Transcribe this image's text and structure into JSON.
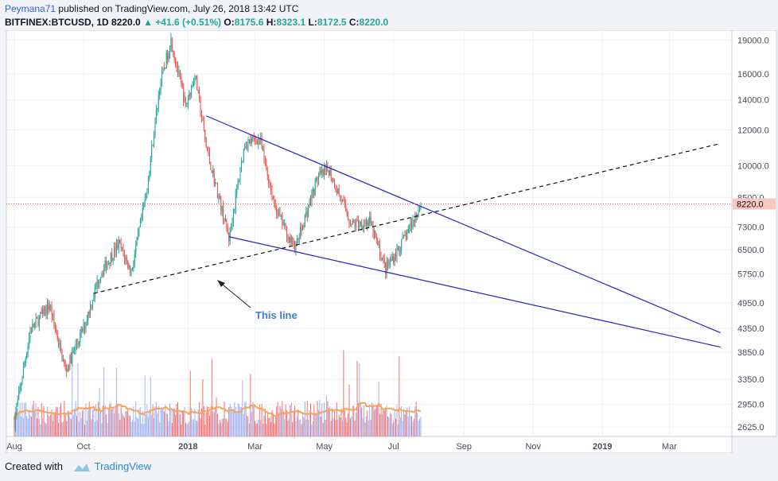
{
  "header": {
    "author": "Peymana71",
    "published_text": "published on TradingView.com, July 26, 2018 13:42 UTC",
    "symbol": "BITFINEX:BTCUSD, 1D",
    "last": "8220.0",
    "change": "+41.6 (+0.51%)",
    "o_label": "O:",
    "o": "8175.6",
    "h_label": "H:",
    "h": "8323.1",
    "l_label": "L:",
    "l": "8172.5",
    "c_label": "C:",
    "c": "8220.0"
  },
  "footer": {
    "created_with": "Created with",
    "brand": "TradingView"
  },
  "annotation": {
    "text": "This line"
  },
  "colors": {
    "up": "#26a69a",
    "down": "#ef5350",
    "trend": "#2323c8",
    "ma": "#f7a35c",
    "vol_up": "#8fa3ef",
    "vol_down": "#f05656",
    "price_label_bg": "#f7c7c0"
  },
  "chart_data": {
    "type": "candlestick",
    "title": "",
    "x_ticks": [
      "Aug",
      "Oct",
      "2018",
      "Mar",
      "May",
      "Jul",
      "Sep",
      "Nov",
      "2019",
      "Mar"
    ],
    "y_ticks": [
      19000.0,
      16000.0,
      14000.0,
      12000.0,
      10000.0,
      8500.0,
      7300.0,
      6500.0,
      5750.0,
      4950.0,
      4350.0,
      3850.0,
      3350.0,
      2950.0,
      2625.0
    ],
    "y_scale": "log",
    "last_price": 8220.0,
    "series": [
      {
        "name": "BTCUSD",
        "points": [
          [
            "2017-08-01",
            2700
          ],
          [
            "2017-08-15",
            4300
          ],
          [
            "2017-09-01",
            4900
          ],
          [
            "2017-09-15",
            3500
          ],
          [
            "2017-10-01",
            4350
          ],
          [
            "2017-10-15",
            5700
          ],
          [
            "2017-11-01",
            6700
          ],
          [
            "2017-11-12",
            5800
          ],
          [
            "2017-11-25",
            8600
          ],
          [
            "2017-12-07",
            15000
          ],
          [
            "2017-12-17",
            19000
          ],
          [
            "2017-12-30",
            13500
          ],
          [
            "2018-01-07",
            16000
          ],
          [
            "2018-01-17",
            11000
          ],
          [
            "2018-02-06",
            6900
          ],
          [
            "2018-02-20",
            11200
          ],
          [
            "2018-03-05",
            11500
          ],
          [
            "2018-03-18",
            8200
          ],
          [
            "2018-04-01",
            6800
          ],
          [
            "2018-04-06",
            6600
          ],
          [
            "2018-04-25",
            9400
          ],
          [
            "2018-05-05",
            9800
          ],
          [
            "2018-05-25",
            7400
          ],
          [
            "2018-06-10",
            7500
          ],
          [
            "2018-06-24",
            5900
          ],
          [
            "2018-07-08",
            6700
          ],
          [
            "2018-07-17",
            7400
          ],
          [
            "2018-07-25",
            8220
          ]
        ]
      }
    ],
    "trendlines": [
      {
        "name": "upper",
        "from": [
          "2018-01-17",
          12900
        ],
        "to": [
          "2019-04-15",
          4250
        ]
      },
      {
        "name": "lower",
        "from": [
          "2018-02-06",
          6950
        ],
        "to": [
          "2019-04-15",
          3950
        ]
      },
      {
        "name": "dashed",
        "from": [
          "2017-10-10",
          5200
        ],
        "to": [
          "2019-04-15",
          11200
        ]
      }
    ],
    "volume_ma": true
  }
}
